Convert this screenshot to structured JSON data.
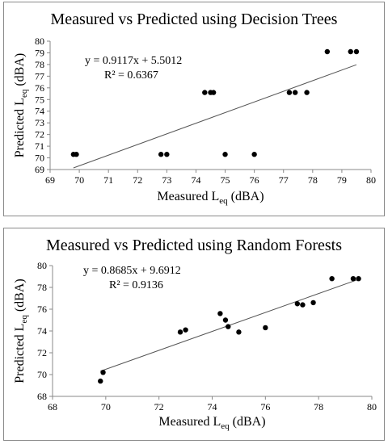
{
  "chart_data": [
    {
      "type": "scatter",
      "title": "Measured vs Predicted using Decision Trees",
      "xlabel": {
        "base": "Measured L",
        "sub": "eq",
        "unit": " (dBA)"
      },
      "ylabel": {
        "base": "Predicted L",
        "sub": "eq",
        "unit": " (dBA)"
      },
      "xlim": [
        69,
        80
      ],
      "ylim": [
        69,
        80
      ],
      "xticks": [
        69,
        70,
        71,
        72,
        73,
        74,
        75,
        76,
        77,
        78,
        79,
        80
      ],
      "yticks": [
        69,
        70,
        71,
        72,
        73,
        74,
        75,
        76,
        77,
        78,
        79,
        80
      ],
      "grid": false,
      "points": [
        [
          69.8,
          70.3
        ],
        [
          69.9,
          70.3
        ],
        [
          72.8,
          70.3
        ],
        [
          73.0,
          70.3
        ],
        [
          74.3,
          75.6
        ],
        [
          74.5,
          75.6
        ],
        [
          74.6,
          75.6
        ],
        [
          75.0,
          70.3
        ],
        [
          76.0,
          70.3
        ],
        [
          77.2,
          75.6
        ],
        [
          77.4,
          75.6
        ],
        [
          77.8,
          75.6
        ],
        [
          78.5,
          79.1
        ],
        [
          79.3,
          79.1
        ],
        [
          79.5,
          79.1
        ]
      ],
      "trendline": {
        "slope": 0.9117,
        "intercept": 5.5012,
        "x_range": [
          69.8,
          79.5
        ]
      },
      "equation": "y = 0.9117x + 5.5012",
      "r2": "R² = 0.6367"
    },
    {
      "type": "scatter",
      "title": "Measured vs Predicted using Random Forests",
      "xlabel": {
        "base": "Measured L",
        "sub": "eq",
        "unit": " (dBA)"
      },
      "ylabel": {
        "base": "Predicted L",
        "sub": "eq",
        "unit": " (dBA)"
      },
      "xlim": [
        68,
        80
      ],
      "ylim": [
        68,
        80
      ],
      "xticks": [
        68,
        70,
        72,
        74,
        76,
        78,
        80
      ],
      "yticks": [
        68,
        70,
        72,
        74,
        76,
        78,
        80
      ],
      "grid": false,
      "points": [
        [
          69.8,
          69.4
        ],
        [
          69.9,
          70.2
        ],
        [
          72.8,
          73.9
        ],
        [
          73.0,
          74.1
        ],
        [
          74.3,
          75.6
        ],
        [
          74.5,
          75.0
        ],
        [
          74.6,
          74.4
        ],
        [
          75.0,
          73.9
        ],
        [
          76.0,
          74.3
        ],
        [
          77.2,
          76.5
        ],
        [
          77.4,
          76.4
        ],
        [
          77.8,
          76.6
        ],
        [
          78.5,
          78.8
        ],
        [
          79.3,
          78.8
        ],
        [
          79.5,
          78.8
        ]
      ],
      "trendline": {
        "slope": 0.8685,
        "intercept": 9.6912,
        "x_range": [
          69.8,
          79.5
        ]
      },
      "equation": "y = 0.8685x + 9.6912",
      "r2": "R² = 0.9136"
    }
  ]
}
